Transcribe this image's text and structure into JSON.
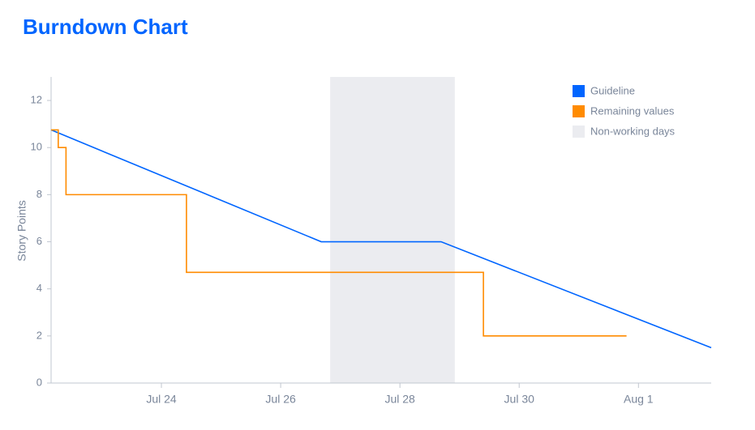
{
  "chart_data": {
    "type": "line",
    "title": "Burndown Chart",
    "ylabel": "Story Points",
    "xlim": [
      22.15,
      33.22
    ],
    "ylim": [
      0,
      13
    ],
    "xticks": [
      {
        "value": 24,
        "label": "Jul 24"
      },
      {
        "value": 26,
        "label": "Jul 26"
      },
      {
        "value": 28,
        "label": "Jul 28"
      },
      {
        "value": 30,
        "label": "Jul 30"
      },
      {
        "value": 32,
        "label": "Aug 1"
      }
    ],
    "yticks": [
      0,
      2,
      4,
      6,
      8,
      10,
      12
    ],
    "series": [
      {
        "name": "Guideline",
        "color": "#0065ff",
        "step": false,
        "x": [
          22.15,
          26.68,
          28.69,
          33.22
        ],
        "values": [
          10.75,
          6,
          6,
          1.5
        ]
      },
      {
        "name": "Remaining values",
        "color": "#ff8b00",
        "step": true,
        "x": [
          22.15,
          22.27,
          22.4,
          24.42,
          29.4,
          31.8
        ],
        "values": [
          10.75,
          10,
          8,
          4.7,
          2,
          2
        ]
      }
    ],
    "band": {
      "name": "Non-working days",
      "color": "#ebecf0",
      "x": [
        26.83,
        28.92
      ]
    }
  }
}
